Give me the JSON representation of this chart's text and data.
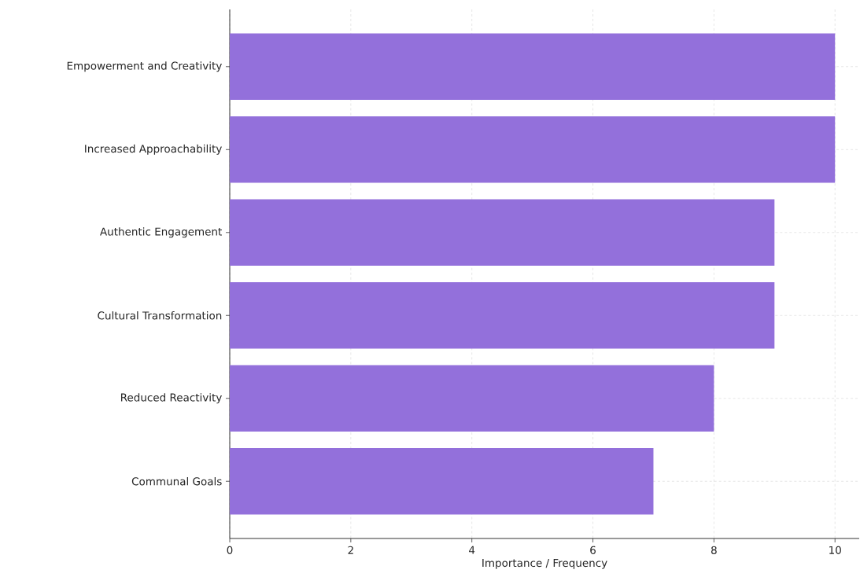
{
  "chart_data": {
    "type": "bar",
    "orientation": "horizontal",
    "categories": [
      "Empowerment and Creativity",
      "Increased Approachability",
      "Authentic Engagement",
      "Cultural Transformation",
      "Reduced Reactivity",
      "Communal Goals"
    ],
    "values": [
      10,
      10,
      9,
      9,
      8,
      7
    ],
    "color": "#9370db",
    "xlabel": "Importance / Frequency",
    "xlim": [
      0,
      10.4
    ],
    "xticks": [
      0,
      2,
      4,
      6,
      8,
      10
    ],
    "grid": true
  }
}
